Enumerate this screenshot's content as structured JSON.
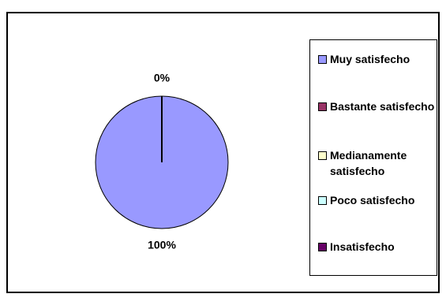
{
  "chart_data": {
    "type": "pie",
    "categories": [
      "Muy satisfecho",
      "Bastante satisfecho",
      "Medianamente satisfecho",
      "Poco satisfecho",
      "Insatisfecho"
    ],
    "values": [
      100,
      0,
      0,
      0,
      0
    ],
    "value_labels": [
      "100%",
      "0%",
      null,
      null,
      null
    ],
    "colors": [
      "#9999ff",
      "#993366",
      "#ffffcc",
      "#ccffff",
      "#660066"
    ],
    "legend": "right"
  }
}
